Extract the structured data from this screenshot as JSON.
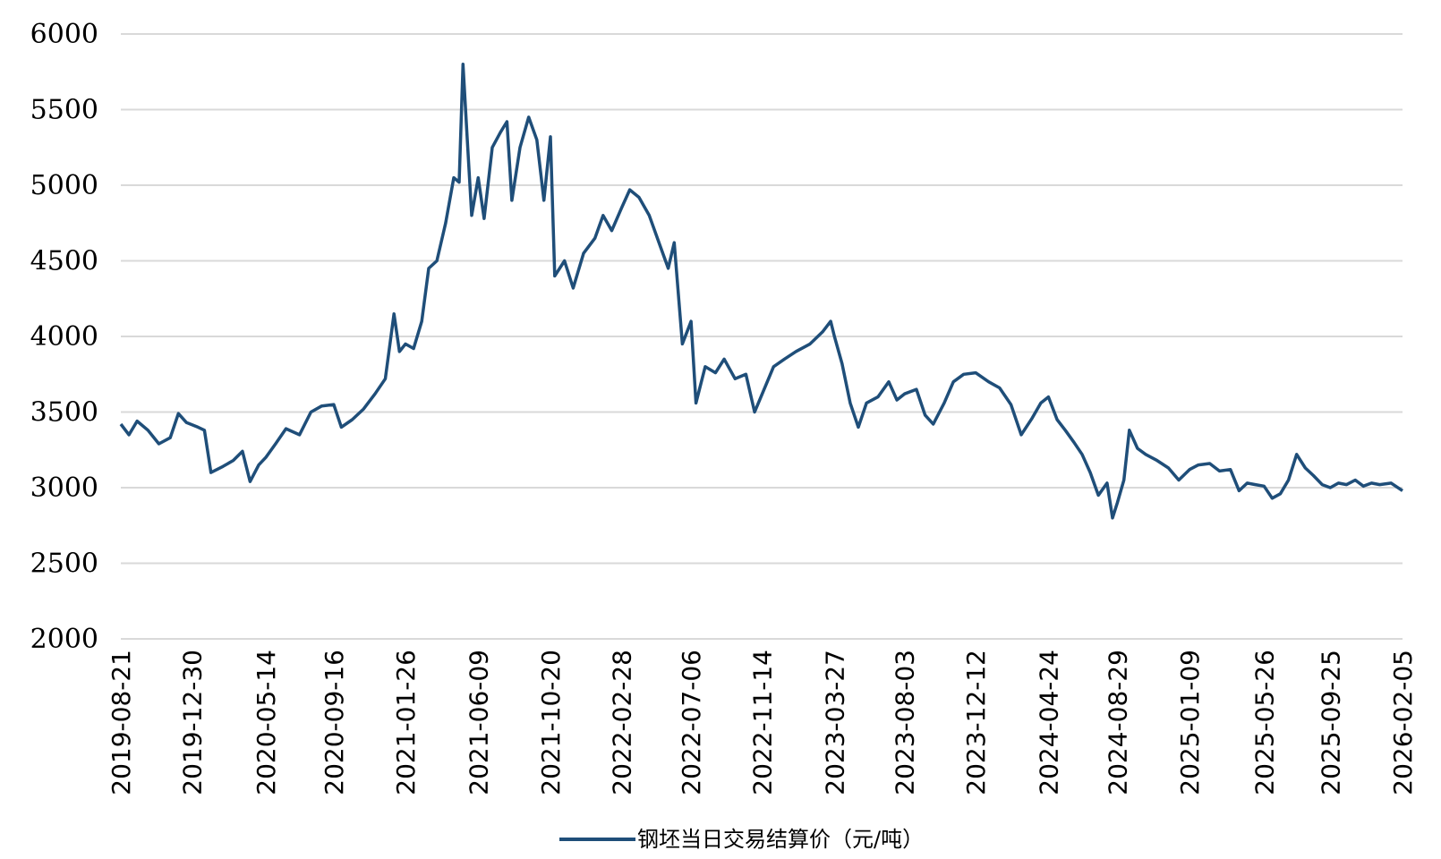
{
  "chart_data": {
    "type": "line",
    "title": "",
    "xlabel": "",
    "ylabel": "",
    "ylim": [
      2000,
      6000
    ],
    "yticks": [
      2000,
      2500,
      3000,
      3500,
      4000,
      4500,
      5000,
      5500,
      6000
    ],
    "grid": "horizontal",
    "legend_position": "bottom-center",
    "x_tick_labels": [
      "2019-08-21",
      "2019-12-30",
      "2020-05-14",
      "2020-09-16",
      "2021-01-26",
      "2021-06-09",
      "2021-10-20",
      "2022-02-28",
      "2022-07-06",
      "2022-11-14",
      "2023-03-27",
      "2023-08-03",
      "2023-12-12",
      "2024-04-24",
      "2024-08-29",
      "2025-01-09",
      "2025-05-26",
      "2025-09-25",
      "2026-02-05"
    ],
    "series": [
      {
        "name": "钢坯当日交易结算价（元/吨）",
        "color": "#1f4e79",
        "points": [
          [
            "2019-08-21",
            3420
          ],
          [
            "2019-09-05",
            3350
          ],
          [
            "2019-09-20",
            3440
          ],
          [
            "2019-10-10",
            3380
          ],
          [
            "2019-10-30",
            3290
          ],
          [
            "2019-11-20",
            3330
          ],
          [
            "2019-12-05",
            3490
          ],
          [
            "2019-12-20",
            3430
          ],
          [
            "2020-01-10",
            3400
          ],
          [
            "2020-01-22",
            3380
          ],
          [
            "2020-02-03",
            3100
          ],
          [
            "2020-02-25",
            3140
          ],
          [
            "2020-03-15",
            3180
          ],
          [
            "2020-04-01",
            3240
          ],
          [
            "2020-04-15",
            3040
          ],
          [
            "2020-05-01",
            3150
          ],
          [
            "2020-05-14",
            3200
          ],
          [
            "2020-06-01",
            3290
          ],
          [
            "2020-06-20",
            3390
          ],
          [
            "2020-07-15",
            3350
          ],
          [
            "2020-08-05",
            3500
          ],
          [
            "2020-08-25",
            3540
          ],
          [
            "2020-09-16",
            3550
          ],
          [
            "2020-09-30",
            3400
          ],
          [
            "2020-10-20",
            3450
          ],
          [
            "2020-11-10",
            3520
          ],
          [
            "2020-12-01",
            3620
          ],
          [
            "2020-12-20",
            3720
          ],
          [
            "2021-01-05",
            4150
          ],
          [
            "2021-01-15",
            3900
          ],
          [
            "2021-01-26",
            3950
          ],
          [
            "2021-02-10",
            3920
          ],
          [
            "2021-02-25",
            4100
          ],
          [
            "2021-03-10",
            4450
          ],
          [
            "2021-03-25",
            4500
          ],
          [
            "2021-04-10",
            4750
          ],
          [
            "2021-04-25",
            5050
          ],
          [
            "2021-05-05",
            5020
          ],
          [
            "2021-05-12",
            5800
          ],
          [
            "2021-05-20",
            5300
          ],
          [
            "2021-05-28",
            4800
          ],
          [
            "2021-06-09",
            5050
          ],
          [
            "2021-06-20",
            4780
          ],
          [
            "2021-07-05",
            5250
          ],
          [
            "2021-07-20",
            5350
          ],
          [
            "2021-08-01",
            5420
          ],
          [
            "2021-08-10",
            4900
          ],
          [
            "2021-08-25",
            5250
          ],
          [
            "2021-09-10",
            5450
          ],
          [
            "2021-09-25",
            5300
          ],
          [
            "2021-10-08",
            4900
          ],
          [
            "2021-10-20",
            5320
          ],
          [
            "2021-10-28",
            4400
          ],
          [
            "2021-11-15",
            4500
          ],
          [
            "2021-12-01",
            4320
          ],
          [
            "2021-12-20",
            4550
          ],
          [
            "2022-01-10",
            4650
          ],
          [
            "2022-01-25",
            4800
          ],
          [
            "2022-02-10",
            4700
          ],
          [
            "2022-02-28",
            4850
          ],
          [
            "2022-03-15",
            4970
          ],
          [
            "2022-04-01",
            4920
          ],
          [
            "2022-04-20",
            4800
          ],
          [
            "2022-05-10",
            4600
          ],
          [
            "2022-05-25",
            4450
          ],
          [
            "2022-06-05",
            4620
          ],
          [
            "2022-06-20",
            3950
          ],
          [
            "2022-07-06",
            4100
          ],
          [
            "2022-07-15",
            3560
          ],
          [
            "2022-08-01",
            3800
          ],
          [
            "2022-08-20",
            3760
          ],
          [
            "2022-09-05",
            3850
          ],
          [
            "2022-09-25",
            3720
          ],
          [
            "2022-10-15",
            3750
          ],
          [
            "2022-10-31",
            3500
          ],
          [
            "2022-11-14",
            3620
          ],
          [
            "2022-12-05",
            3800
          ],
          [
            "2022-12-25",
            3850
          ],
          [
            "2023-01-15",
            3900
          ],
          [
            "2023-02-10",
            3950
          ],
          [
            "2023-03-05",
            4030
          ],
          [
            "2023-03-20",
            4100
          ],
          [
            "2023-03-27",
            4000
          ],
          [
            "2023-04-10",
            3820
          ],
          [
            "2023-04-25",
            3560
          ],
          [
            "2023-05-10",
            3400
          ],
          [
            "2023-05-25",
            3560
          ],
          [
            "2023-06-15",
            3600
          ],
          [
            "2023-07-05",
            3700
          ],
          [
            "2023-07-20",
            3580
          ],
          [
            "2023-08-03",
            3620
          ],
          [
            "2023-08-25",
            3650
          ],
          [
            "2023-09-10",
            3480
          ],
          [
            "2023-09-25",
            3420
          ],
          [
            "2023-10-15",
            3560
          ],
          [
            "2023-11-01",
            3700
          ],
          [
            "2023-11-20",
            3750
          ],
          [
            "2023-12-12",
            3760
          ],
          [
            "2024-01-05",
            3700
          ],
          [
            "2024-01-25",
            3660
          ],
          [
            "2024-02-15",
            3550
          ],
          [
            "2024-03-05",
            3350
          ],
          [
            "2024-03-25",
            3460
          ],
          [
            "2024-04-10",
            3560
          ],
          [
            "2024-04-24",
            3600
          ],
          [
            "2024-05-10",
            3450
          ],
          [
            "2024-05-25",
            3380
          ],
          [
            "2024-06-10",
            3300
          ],
          [
            "2024-06-25",
            3220
          ],
          [
            "2024-07-10",
            3100
          ],
          [
            "2024-07-25",
            2950
          ],
          [
            "2024-08-10",
            3030
          ],
          [
            "2024-08-20",
            2800
          ],
          [
            "2024-08-29",
            2900
          ],
          [
            "2024-09-10",
            3050
          ],
          [
            "2024-09-20",
            3380
          ],
          [
            "2024-10-05",
            3260
          ],
          [
            "2024-10-20",
            3220
          ],
          [
            "2024-11-10",
            3180
          ],
          [
            "2024-12-01",
            3130
          ],
          [
            "2024-12-20",
            3050
          ],
          [
            "2025-01-09",
            3120
          ],
          [
            "2025-01-25",
            3150
          ],
          [
            "2025-02-15",
            3160
          ],
          [
            "2025-03-05",
            3110
          ],
          [
            "2025-03-25",
            3120
          ],
          [
            "2025-04-10",
            2980
          ],
          [
            "2025-04-25",
            3030
          ],
          [
            "2025-05-10",
            3020
          ],
          [
            "2025-05-26",
            3010
          ],
          [
            "2025-06-10",
            2930
          ],
          [
            "2025-06-25",
            2960
          ],
          [
            "2025-07-10",
            3050
          ],
          [
            "2025-07-25",
            3220
          ],
          [
            "2025-08-10",
            3130
          ],
          [
            "2025-08-25",
            3080
          ],
          [
            "2025-09-10",
            3020
          ],
          [
            "2025-09-25",
            3000
          ],
          [
            "2025-10-10",
            3030
          ],
          [
            "2025-10-25",
            3020
          ],
          [
            "2025-11-10",
            3050
          ],
          [
            "2025-11-25",
            3010
          ],
          [
            "2025-12-10",
            3030
          ],
          [
            "2025-12-25",
            3020
          ],
          [
            "2026-01-15",
            3030
          ],
          [
            "2026-02-05",
            2980
          ]
        ]
      }
    ]
  }
}
